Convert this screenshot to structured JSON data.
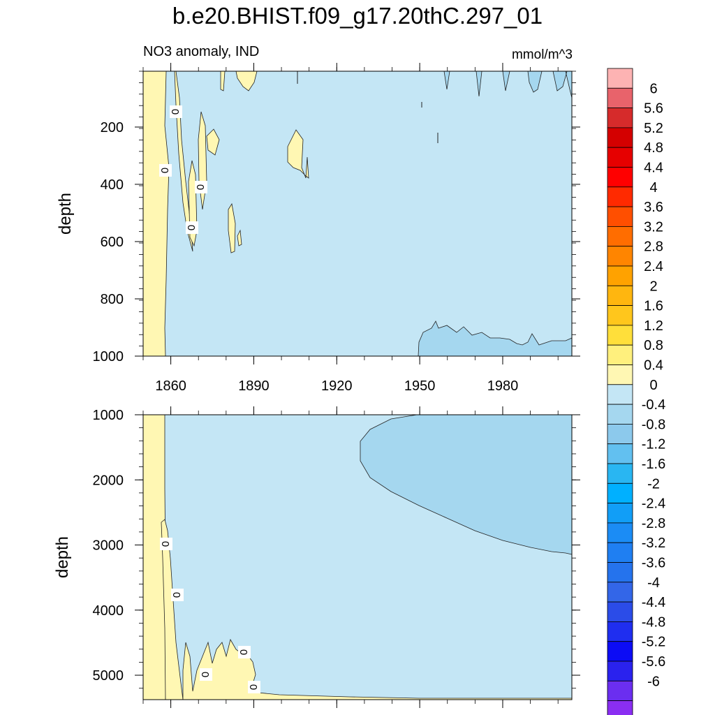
{
  "page_title": "b.e20.BHIST.f09_g17.20thC.297_01",
  "subtitle_left": "NO3 anomaly, IND",
  "units": "mmol/m^3",
  "colors": {
    "positive_fill": "#fff7b3",
    "negative_fill": "#c4e6f5",
    "more_negative_fill": "#a5d7ef"
  },
  "chart_data": [
    {
      "type": "contour",
      "panel": "upper",
      "ylabel": "depth",
      "xlabel": "",
      "xlim": [
        1850,
        2005
      ],
      "ylim": [
        1000,
        5
      ],
      "xticks": [
        1860,
        1890,
        1920,
        1950,
        1980
      ],
      "yticks": [
        200,
        400,
        600,
        800,
        1000
      ],
      "contour_labels": [
        "0",
        "0",
        "0",
        "0"
      ],
      "regions": [
        {
          "level": "0 to 0.4",
          "description_values": {
            "x_start": 1850,
            "x_end": 1858,
            "y_start": 5,
            "y_end": 1000
          }
        },
        {
          "level": "-0.4 to -0.8",
          "description_values": {
            "x_start": 1950,
            "x_end": 2005,
            "y_start": 880,
            "y_end": 1000
          }
        }
      ]
    },
    {
      "type": "contour",
      "panel": "lower",
      "ylabel": "depth",
      "xlabel": "",
      "xlim": [
        1850,
        2005
      ],
      "ylim": [
        5375,
        1000
      ],
      "xticks": [
        1860,
        1890,
        1920,
        1950,
        1980
      ],
      "yticks": [
        1000,
        2000,
        3000,
        4000,
        5000
      ],
      "contour_labels": [
        "0",
        "0",
        "0",
        "0",
        "0"
      ],
      "regions": [
        {
          "level": "0 to 0.4",
          "description_values": {
            "x_start": 1850,
            "x_end": 1858,
            "y_start": 1000,
            "y_end": 5375
          }
        },
        {
          "level": "-0.4 to -0.8",
          "description_values": {
            "x_start": 1929,
            "x_end": 2005,
            "y_start": 1000,
            "y_end": 3150
          }
        }
      ]
    }
  ],
  "colorbar": {
    "labels": [
      "6",
      "5.6",
      "5.2",
      "4.8",
      "4.4",
      "4",
      "3.6",
      "3.2",
      "2.8",
      "2.4",
      "2",
      "1.6",
      "1.2",
      "0.8",
      "0.4",
      "0",
      "-0.4",
      "-0.8",
      "-1.2",
      "-1.6",
      "-2",
      "-2.4",
      "-2.8",
      "-3.2",
      "-3.6",
      "-4",
      "-4.4",
      "-4.8",
      "-5.2",
      "-5.6",
      "-6"
    ],
    "colors": [
      "#fdb3b3",
      "#e8636b",
      "#d62b2b",
      "#d40000",
      "#e60000",
      "#ff0000",
      "#ff2a00",
      "#ff4f00",
      "#ff6d00",
      "#ff8500",
      "#ffa200",
      "#ffb60f",
      "#ffc61c",
      "#ffdf3a",
      "#fff07d",
      "#fff7b3",
      "#c4e6f5",
      "#a5d7ef",
      "#8cc9ec",
      "#62c0f0",
      "#29b6f2",
      "#00b0ff",
      "#119ef7",
      "#1b8cf5",
      "#1f7ff2",
      "#2573ed",
      "#3366e8",
      "#2b4ce8",
      "#1f2ef0",
      "#0c0cf5",
      "#2a22ee",
      "#6b2ef0",
      "#8a2ef2"
    ]
  }
}
